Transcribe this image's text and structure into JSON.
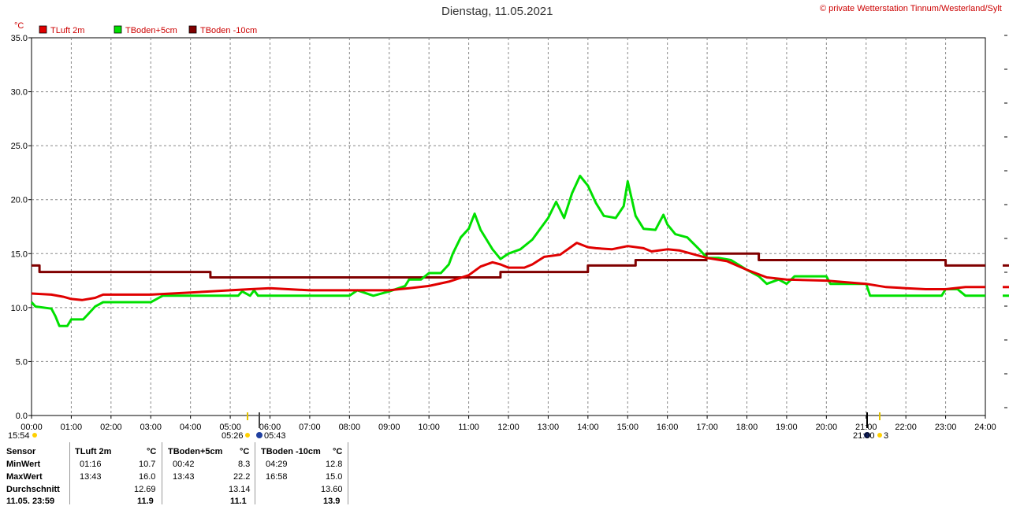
{
  "title": "Dienstag, 11.05.2021",
  "copyright": "© private Wetterstation Tinnum/Westerland/Sylt",
  "chart_data": {
    "type": "line",
    "ylabel": "°C",
    "ylim": [
      0,
      35
    ],
    "xlim": [
      0,
      24
    ],
    "grid": true,
    "legend_position": "top-left",
    "yticks": [
      "0.0",
      "5.0",
      "10.0",
      "15.0",
      "20.0",
      "25.0",
      "30.0",
      "35.0"
    ],
    "xticks": [
      "00:00",
      "01:00",
      "02:00",
      "03:00",
      "04:00",
      "05:00",
      "06:00",
      "07:00",
      "08:00",
      "09:00",
      "10:00",
      "11:00",
      "12:00",
      "13:00",
      "14:00",
      "15:00",
      "16:00",
      "17:00",
      "18:00",
      "19:00",
      "20:00",
      "21:00",
      "22:00",
      "23:00",
      "24:00"
    ],
    "series": [
      {
        "name": "TLuft 2m",
        "color": "#e00000",
        "points": [
          [
            0,
            11.3
          ],
          [
            0.5,
            11.2
          ],
          [
            0.8,
            11.0
          ],
          [
            1.0,
            10.8
          ],
          [
            1.27,
            10.7
          ],
          [
            1.6,
            10.9
          ],
          [
            1.8,
            11.2
          ],
          [
            2.5,
            11.2
          ],
          [
            3.0,
            11.2
          ],
          [
            4.0,
            11.4
          ],
          [
            5.0,
            11.6
          ],
          [
            5.5,
            11.7
          ],
          [
            6.0,
            11.8
          ],
          [
            7.0,
            11.6
          ],
          [
            8.0,
            11.6
          ],
          [
            9.0,
            11.6
          ],
          [
            9.5,
            11.8
          ],
          [
            10.0,
            12.0
          ],
          [
            10.5,
            12.4
          ],
          [
            11.0,
            13.0
          ],
          [
            11.3,
            13.8
          ],
          [
            11.6,
            14.2
          ],
          [
            11.8,
            14.0
          ],
          [
            12.0,
            13.7
          ],
          [
            12.4,
            13.7
          ],
          [
            12.6,
            14.0
          ],
          [
            12.9,
            14.7
          ],
          [
            13.3,
            14.9
          ],
          [
            13.72,
            16.0
          ],
          [
            14.0,
            15.6
          ],
          [
            14.2,
            15.5
          ],
          [
            14.6,
            15.4
          ],
          [
            15.0,
            15.7
          ],
          [
            15.4,
            15.5
          ],
          [
            15.6,
            15.2
          ],
          [
            16.0,
            15.4
          ],
          [
            16.3,
            15.3
          ],
          [
            16.7,
            14.9
          ],
          [
            17.0,
            14.6
          ],
          [
            17.5,
            14.3
          ],
          [
            18.0,
            13.5
          ],
          [
            18.5,
            12.8
          ],
          [
            19.0,
            12.6
          ],
          [
            20.0,
            12.5
          ],
          [
            21.0,
            12.2
          ],
          [
            21.5,
            11.9
          ],
          [
            22.0,
            11.8
          ],
          [
            22.5,
            11.7
          ],
          [
            23.0,
            11.7
          ],
          [
            23.5,
            11.9
          ],
          [
            24.0,
            11.9
          ]
        ]
      },
      {
        "name": "TBoden+5cm",
        "color": "#00e000",
        "points": [
          [
            0,
            10.5
          ],
          [
            0.1,
            10.1
          ],
          [
            0.5,
            9.9
          ],
          [
            0.6,
            9.2
          ],
          [
            0.7,
            8.3
          ],
          [
            0.9,
            8.3
          ],
          [
            1.0,
            8.9
          ],
          [
            1.3,
            8.9
          ],
          [
            1.4,
            9.3
          ],
          [
            1.6,
            10.1
          ],
          [
            1.8,
            10.5
          ],
          [
            3.0,
            10.5
          ],
          [
            3.3,
            11.1
          ],
          [
            5.2,
            11.1
          ],
          [
            5.3,
            11.5
          ],
          [
            5.5,
            11.1
          ],
          [
            5.6,
            11.6
          ],
          [
            5.7,
            11.1
          ],
          [
            7.0,
            11.1
          ],
          [
            8.0,
            11.1
          ],
          [
            8.2,
            11.6
          ],
          [
            8.6,
            11.1
          ],
          [
            9.0,
            11.5
          ],
          [
            9.4,
            12.0
          ],
          [
            9.5,
            12.6
          ],
          [
            9.8,
            12.6
          ],
          [
            10.0,
            13.2
          ],
          [
            10.3,
            13.2
          ],
          [
            10.5,
            14.0
          ],
          [
            10.6,
            15.0
          ],
          [
            10.8,
            16.5
          ],
          [
            11.0,
            17.3
          ],
          [
            11.15,
            18.7
          ],
          [
            11.3,
            17.2
          ],
          [
            11.5,
            16.0
          ],
          [
            11.6,
            15.4
          ],
          [
            11.8,
            14.5
          ],
          [
            12.0,
            15.0
          ],
          [
            12.3,
            15.4
          ],
          [
            12.6,
            16.3
          ],
          [
            12.8,
            17.3
          ],
          [
            13.0,
            18.3
          ],
          [
            13.2,
            19.8
          ],
          [
            13.4,
            18.3
          ],
          [
            13.6,
            20.6
          ],
          [
            13.8,
            22.2
          ],
          [
            14.0,
            21.3
          ],
          [
            14.2,
            19.7
          ],
          [
            14.4,
            18.5
          ],
          [
            14.7,
            18.3
          ],
          [
            14.9,
            19.4
          ],
          [
            15.0,
            21.7
          ],
          [
            15.2,
            18.5
          ],
          [
            15.4,
            17.3
          ],
          [
            15.7,
            17.2
          ],
          [
            15.9,
            18.6
          ],
          [
            16.0,
            17.7
          ],
          [
            16.2,
            16.8
          ],
          [
            16.5,
            16.5
          ],
          [
            16.8,
            15.4
          ],
          [
            17.0,
            14.6
          ],
          [
            17.3,
            14.6
          ],
          [
            17.6,
            14.4
          ],
          [
            18.0,
            13.5
          ],
          [
            18.3,
            12.9
          ],
          [
            18.5,
            12.2
          ],
          [
            18.8,
            12.6
          ],
          [
            19.0,
            12.2
          ],
          [
            19.2,
            12.9
          ],
          [
            20.0,
            12.9
          ],
          [
            20.1,
            12.2
          ],
          [
            21.0,
            12.2
          ],
          [
            21.1,
            11.1
          ],
          [
            22.0,
            11.1
          ],
          [
            22.9,
            11.1
          ],
          [
            23.0,
            11.7
          ],
          [
            23.3,
            11.7
          ],
          [
            23.5,
            11.1
          ],
          [
            24.0,
            11.1
          ]
        ]
      },
      {
        "name": "TBoden -10cm",
        "color": "#800000",
        "points": [
          [
            0,
            13.9
          ],
          [
            0.2,
            13.9
          ],
          [
            0.2,
            13.3
          ],
          [
            4.5,
            13.3
          ],
          [
            4.5,
            12.8
          ],
          [
            11.8,
            12.8
          ],
          [
            11.8,
            13.3
          ],
          [
            13.5,
            13.3
          ],
          [
            14.0,
            13.3
          ],
          [
            14.0,
            13.9
          ],
          [
            15.2,
            13.9
          ],
          [
            15.2,
            14.4
          ],
          [
            16.98,
            14.4
          ],
          [
            16.98,
            15.0
          ],
          [
            18.3,
            15.0
          ],
          [
            18.3,
            14.4
          ],
          [
            23.0,
            14.4
          ],
          [
            23.0,
            13.9
          ],
          [
            24.0,
            13.9
          ]
        ]
      }
    ],
    "annotations": {
      "sun_events": [
        "15:54",
        "05:26",
        "05:43",
        "21:00",
        "3"
      ]
    }
  },
  "table": {
    "headers": [
      "Sensor",
      "TLuft 2m",
      "°C",
      "TBoden+5cm",
      "°C",
      "TBoden -10cm",
      "°C"
    ],
    "rows": [
      {
        "label": "MinWert",
        "t1": "01:16",
        "v1": "10.7",
        "t2": "00:42",
        "v2": "8.3",
        "t3": "04:29",
        "v3": "12.8"
      },
      {
        "label": "MaxWert",
        "t1": "13:43",
        "v1": "16.0",
        "t2": "13:43",
        "v2": "22.2",
        "t3": "16:58",
        "v3": "15.0"
      },
      {
        "label": "Durchschnitt",
        "t1": "",
        "v1": "12.69",
        "t2": "",
        "v2": "13.14",
        "t3": "",
        "v3": "13.60"
      },
      {
        "label": "11.05. 23:59",
        "t1": "",
        "v1": "11.9",
        "t2": "",
        "v2": "11.1",
        "t3": "",
        "v3": "13.9"
      }
    ]
  }
}
